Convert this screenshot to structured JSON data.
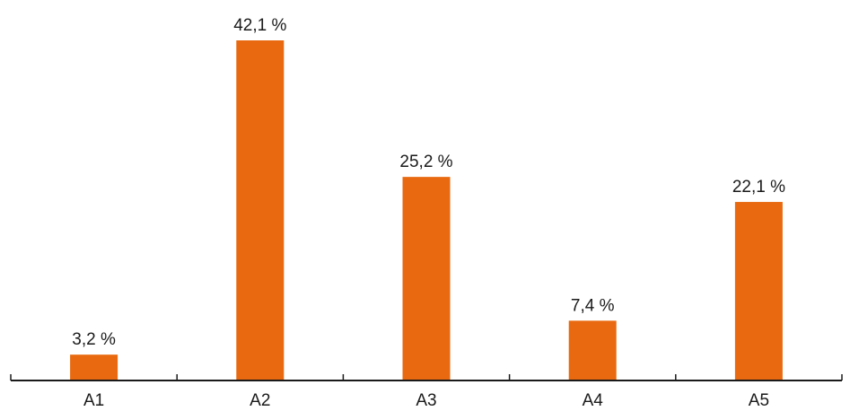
{
  "chart_data": {
    "type": "bar",
    "categories": [
      "A1",
      "A2",
      "A3",
      "A4",
      "A5"
    ],
    "values": [
      3.2,
      42.1,
      25.2,
      7.4,
      22.1
    ],
    "value_labels": [
      "3,2 %",
      "42,1 %",
      "25,2 %",
      "7,4 %",
      "22,1 %"
    ],
    "title": "",
    "xlabel": "",
    "ylabel": "",
    "ylim": [
      0,
      42.1
    ],
    "grid": false,
    "legend": "none",
    "bar_color": "#E8690F",
    "axis_color": "#1a1a1a"
  }
}
